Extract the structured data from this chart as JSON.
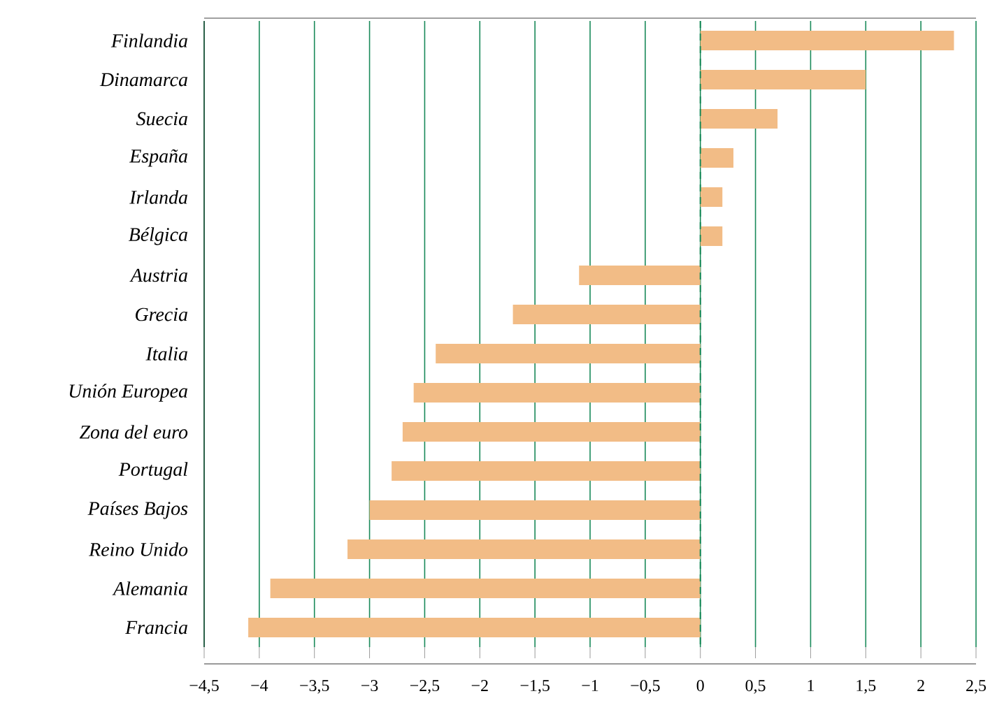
{
  "chart_data": {
    "type": "bar",
    "orientation": "horizontal",
    "categories": [
      "Finlandia",
      "Dinamarca",
      "Suecia",
      "España",
      "Irlanda",
      "Bélgica",
      "Austria",
      "Grecia",
      "Italia",
      "Unión Europea",
      "Zona del euro",
      "Portugal",
      "Países Bajos",
      "Reino Unido",
      "Alemania",
      "Francia"
    ],
    "values": [
      2.3,
      1.5,
      0.7,
      0.3,
      0.2,
      0.2,
      -1.1,
      -1.7,
      -2.4,
      -2.6,
      -2.7,
      -2.8,
      -3.0,
      -3.2,
      -3.9,
      -4.1
    ],
    "color": "#f2bc86",
    "xlim": [
      -4.5,
      2.5
    ],
    "xticks": [
      {
        "value": -4.5,
        "label": "−4,5"
      },
      {
        "value": -4,
        "label": "−4"
      },
      {
        "value": -3.5,
        "label": "−3,5"
      },
      {
        "value": -3,
        "label": "−3"
      },
      {
        "value": -2.5,
        "label": "−2,5"
      },
      {
        "value": -2,
        "label": "−2"
      },
      {
        "value": -1.5,
        "label": "−1,5"
      },
      {
        "value": -1,
        "label": "−1"
      },
      {
        "value": -0.5,
        "label": "−0,5"
      },
      {
        "value": 0,
        "label": "0"
      },
      {
        "value": 0.5,
        "label": "0,5"
      },
      {
        "value": 1,
        "label": "1"
      },
      {
        "value": 1.5,
        "label": "1,5"
      },
      {
        "value": 2,
        "label": "2"
      },
      {
        "value": 2.5,
        "label": "2,5"
      }
    ],
    "grid": "x",
    "ref_lines": [
      {
        "axis": "x",
        "value": 0,
        "color": "#1a8a5a",
        "line_style": "dashed"
      }
    ]
  }
}
